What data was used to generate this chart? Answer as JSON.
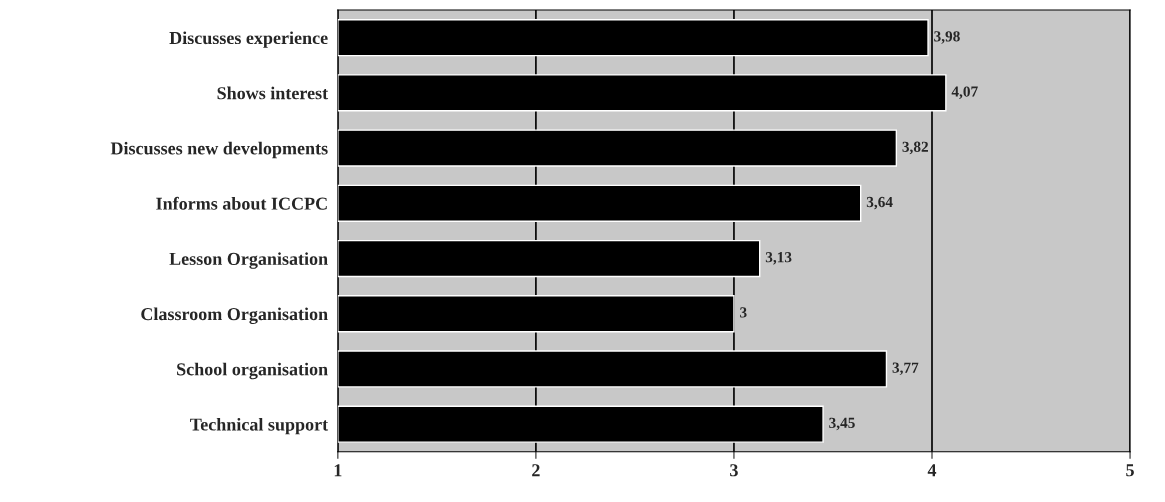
{
  "chart_data": {
    "type": "bar",
    "orientation": "horizontal",
    "categories": [
      "Discusses experience",
      "Shows interest",
      "Discusses new developments",
      "Informs about ICCPC",
      "Lesson Organisation",
      "Classroom Organisation",
      "School organisation",
      "Technical support"
    ],
    "values": [
      3.98,
      4.07,
      3.82,
      3.64,
      3.13,
      3,
      3.77,
      3.45
    ],
    "value_labels": [
      "3,98",
      "4,07",
      "3,82",
      "3,64",
      "3,13",
      "3",
      "3,77",
      "3,45"
    ],
    "color": "#000000",
    "xlim": [
      1,
      5
    ],
    "xticks": [
      1,
      2,
      3,
      4,
      5
    ],
    "grid": "x"
  }
}
